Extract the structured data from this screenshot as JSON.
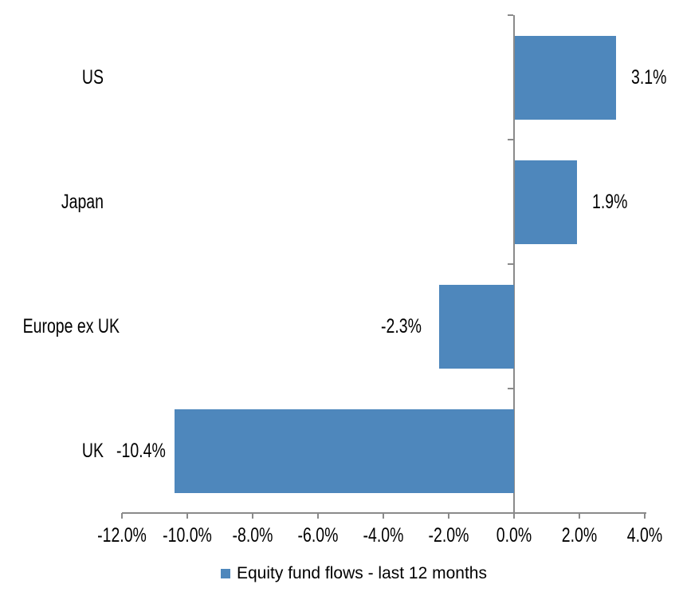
{
  "chart_data": {
    "type": "bar",
    "orientation": "horizontal",
    "title": "",
    "categories": [
      "US",
      "Japan",
      "Europe ex UK",
      "UK"
    ],
    "series": [
      {
        "name": "Equity fund flows - last 12 months",
        "values": [
          3.1,
          1.9,
          -2.3,
          -10.4
        ]
      }
    ],
    "values": [
      3.1,
      1.9,
      -2.3,
      -10.4
    ],
    "data_labels": [
      "3.1%",
      "1.9%",
      "-2.3%",
      "-10.4%"
    ],
    "xlim": [
      -12,
      4
    ],
    "x_tick_values": [
      -12,
      -10,
      -8,
      -6,
      -4,
      -2,
      0,
      2,
      4
    ],
    "x_tick_labels": [
      "-12.0%",
      "-10.0%",
      "-8.0%",
      "-6.0%",
      "-4.0%",
      "-2.0%",
      "0.0%",
      "2.0%",
      "4.0%"
    ],
    "grid": false,
    "legend": {
      "label": "Equity fund flows - last 12 months",
      "position": "bottom"
    },
    "colors": {
      "bar": "#4E87BC",
      "axis": "#8A8A8A",
      "text": "#000000",
      "background": "#FFFFFF"
    }
  }
}
